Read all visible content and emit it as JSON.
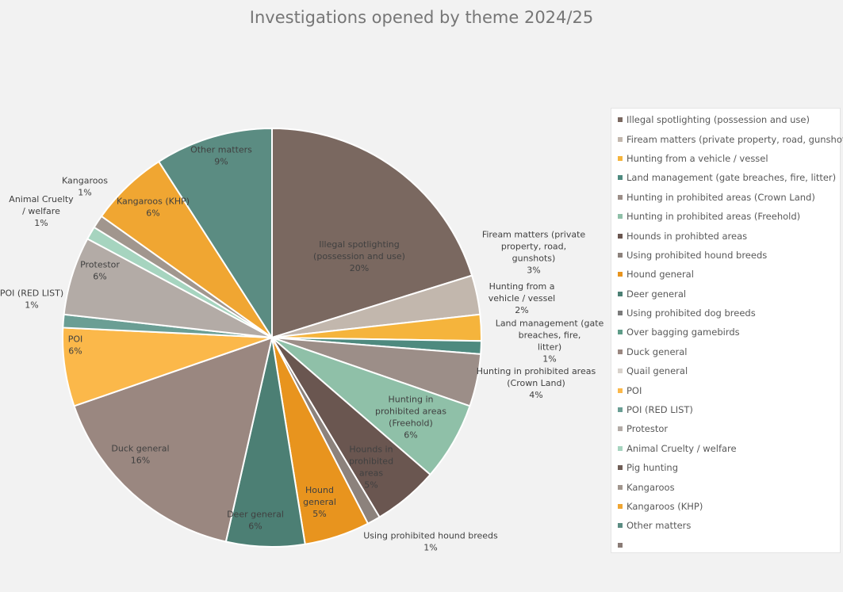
{
  "chart_data": {
    "type": "pie",
    "title": "Investigations opened by theme 2024/25",
    "legend_position": "right",
    "slices": [
      {
        "label": "Illegal spotlighting (possession and use)",
        "value": 20,
        "pct_label": "20%",
        "color": "#7a6860",
        "legend_label": "Illegal spotlighting (possession and use)"
      },
      {
        "label": "Fiream matters (private property, road, gunshots)",
        "value": 3,
        "pct_label": "3%",
        "color": "#c2b7ad",
        "legend_label": "Fiream matters (private property, road, gunshots)"
      },
      {
        "label": "Hunting from a vehicle / vessel",
        "value": 2,
        "pct_label": "2%",
        "color": "#f5b43c",
        "legend_label": "Hunting from a vehicle / vessel"
      },
      {
        "label": "Land management (gate breaches, fire, litter)",
        "value": 1,
        "pct_label": "1%",
        "color": "#4e8a7f",
        "legend_label": "Land management (gate breaches, fire, litter)"
      },
      {
        "label": "Hunting in prohibited areas (Crown Land)",
        "value": 4,
        "pct_label": "4%",
        "color": "#9c8e88",
        "legend_label": "Hunting in prohibited areas (Crown Land)"
      },
      {
        "label": "Hunting in prohibited areas (Freehold)",
        "value": 6,
        "pct_label": "6%",
        "color": "#8fc0a8",
        "legend_label": "Hunting in prohibited areas (Freehold)"
      },
      {
        "label": "Hounds in prohibited areas",
        "value": 5,
        "pct_label": "5%",
        "color": "#6a5650",
        "legend_label": "Hounds in prohibted areas"
      },
      {
        "label": "Using prohibited hound breeds",
        "value": 1,
        "pct_label": "1%",
        "color": "#8c827c",
        "legend_label": "Using prohibited hound breeds"
      },
      {
        "label": "Hound general",
        "value": 5,
        "pct_label": "5%",
        "color": "#e8941e",
        "legend_label": "Hound general"
      },
      {
        "label": "Deer general",
        "value": 6,
        "pct_label": "6%",
        "color": "#4c7f74",
        "legend_label": "Deer general"
      },
      {
        "label": "",
        "value": 0,
        "pct_label": "",
        "color": "#7b7b7b",
        "legend_label": "Using prohibited dog breeds"
      },
      {
        "label": "",
        "value": 0,
        "pct_label": "",
        "color": "#5e9c88",
        "legend_label": "Over bagging gamebirds"
      },
      {
        "label": "Duck general",
        "value": 16,
        "pct_label": "16%",
        "color": "#9a8780",
        "legend_label": "Duck general"
      },
      {
        "label": "",
        "value": 0,
        "pct_label": "",
        "color": "#d8d2cc",
        "legend_label": "Quail general"
      },
      {
        "label": "POI",
        "value": 6,
        "pct_label": "6%",
        "color": "#fbb84a",
        "legend_label": "POI"
      },
      {
        "label": "POI (RED LIST)",
        "value": 1,
        "pct_label": "1%",
        "color": "#6a9e94",
        "legend_label": "POI (RED LIST)"
      },
      {
        "label": "Protestor",
        "value": 6,
        "pct_label": "6%",
        "color": "#b3aba6",
        "legend_label": "Protestor"
      },
      {
        "label": "Animal Cruelty / welfare",
        "value": 1,
        "pct_label": "1%",
        "color": "#a6d4bf",
        "legend_label": "Animal Cruelty / welfare"
      },
      {
        "label": "",
        "value": 0,
        "pct_label": "",
        "color": "#6f5d56",
        "legend_label": "Pig hunting"
      },
      {
        "label": "Kangaroos",
        "value": 1,
        "pct_label": "1%",
        "color": "#a1968e",
        "legend_label": "Kangaroos"
      },
      {
        "label": "Kangaroos (KHP)",
        "value": 6,
        "pct_label": "6%",
        "color": "#f0a632",
        "legend_label": "Kangaroos (KHP)"
      },
      {
        "label": "Other matters",
        "value": 9,
        "pct_label": "9%",
        "color": "#5b8c82",
        "legend_label": "Other matters"
      },
      {
        "label": "",
        "value": 0,
        "pct_label": "",
        "color": "#8a7b76",
        "legend_label": ""
      }
    ]
  }
}
